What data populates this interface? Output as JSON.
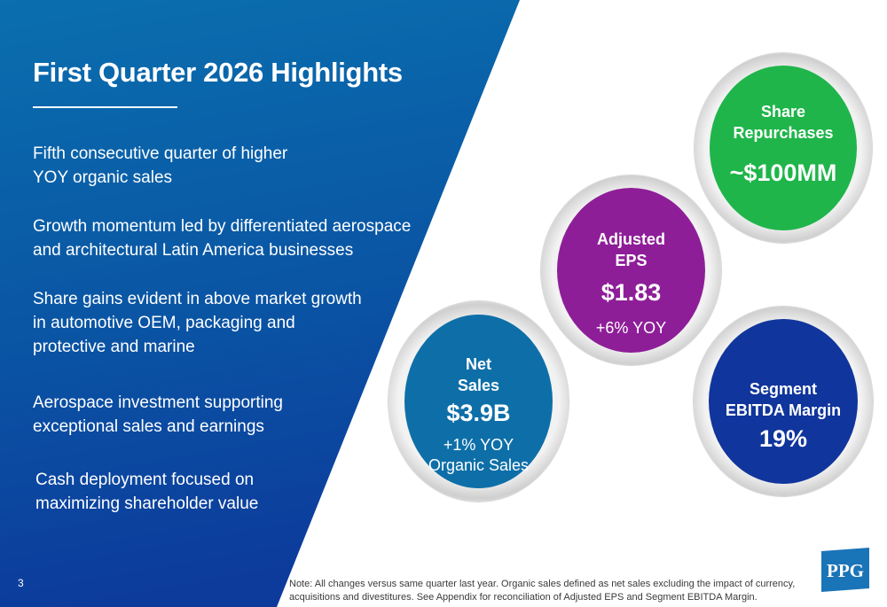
{
  "slide": {
    "title": "First Quarter 2026 Highlights",
    "page_number": "3",
    "bullets": [
      "Fifth consecutive quarter of higher\nYOY organic sales",
      "Growth momentum led by differentiated aerospace\nand architectural Latin America businesses",
      "Share gains evident in above market growth\nin automotive OEM, packaging and\nprotective and marine",
      "Aerospace investment supporting\nexceptional sales and earnings",
      "Cash deployment focused on\nmaximizing shareholder value"
    ],
    "note": "Note: All changes versus same quarter last year. Organic sales defined as net sales excluding the impact of currency, acquisitions and divestitures. See Appendix for reconciliation of Adjusted EPS and Segment EBITDA Margin.",
    "logo_text": "PPG"
  },
  "metrics": {
    "share_repurchases": {
      "title": "Share\nRepurchases",
      "value": "~$100MM",
      "color": "#1fb54a"
    },
    "adjusted_eps": {
      "title": "Adjusted\nEPS",
      "value": "$1.83",
      "sub": "+6% YOY",
      "color": "#8e1e98"
    },
    "net_sales": {
      "title": "Net\nSales",
      "value": "$3.9B",
      "sub": "+1% YOY\nOrganic Sales",
      "color": "#0e6fa8"
    },
    "segment_ebitda": {
      "title": "Segment\nEBITDA Margin",
      "value": "19%",
      "color": "#10359c"
    }
  },
  "colors": {
    "panel_top": "#0a6fae",
    "panel_bottom": "#0c3b9c",
    "logo_blue": "#1a74b8"
  }
}
